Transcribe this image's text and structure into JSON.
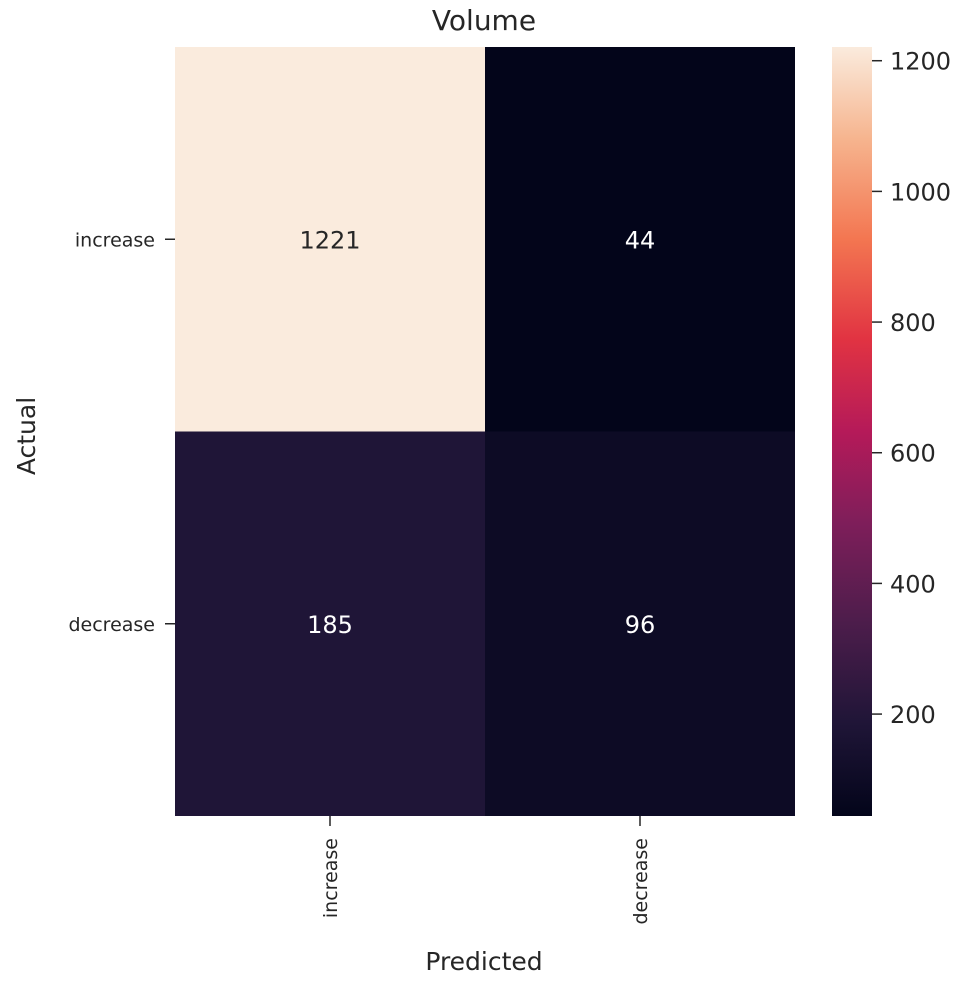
{
  "chart_data": {
    "type": "heatmap",
    "title": "Volume",
    "xlabel": "Predicted",
    "ylabel": "Actual",
    "x_categories": [
      "increase",
      "decrease"
    ],
    "y_categories": [
      "increase",
      "decrease"
    ],
    "values": [
      [
        1221,
        44
      ],
      [
        185,
        96
      ]
    ],
    "colormap": "rocket",
    "colorbar": {
      "range": [
        44,
        1221
      ],
      "ticks": [
        200,
        400,
        600,
        800,
        1000,
        1200
      ]
    }
  }
}
